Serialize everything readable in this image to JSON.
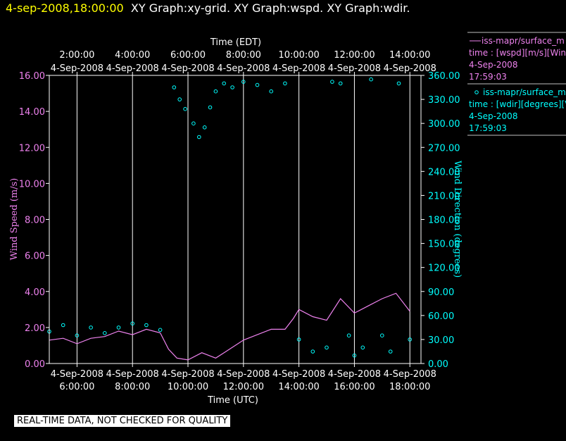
{
  "header": {
    "datetime": "4-sep-2008,18:00:00",
    "graphs": "XY Graph:xy-grid.  XY Graph:wspd.  XY Graph:wdir."
  },
  "colors": {
    "background": "#000000",
    "axis": "#ffffff",
    "grid": "#ffffff",
    "speed": "#ee82ee",
    "direction": "#00ffff",
    "date_highlight": "#ffff00"
  },
  "legend": [
    {
      "name": "iss-mapr/surface_m",
      "detail": "time : [wspd][m/s][Wind",
      "date": "4-Sep-2008",
      "time": "17:59:03",
      "color": "#ee82ee",
      "marker": "line"
    },
    {
      "name": "iss-mapr/surface_m",
      "detail": "time : [wdir][degrees][V",
      "date": "4-Sep-2008",
      "time": "17:59:03",
      "color": "#00ffff",
      "marker": "circle"
    }
  ],
  "footer_note": "REAL-TIME DATA, NOT CHECKED FOR QUALITY",
  "chart_data": {
    "type": "line",
    "top_axis_title": "Time (EDT)",
    "bottom_axis_title": "Time (UTC)",
    "y_left_label": "Wind Speed (m/s)",
    "y_right_label": "Wind Direction (degrees)",
    "x_range_utc_hours": [
      5.0,
      18.4
    ],
    "x_ticks_utc_hours": [
      6,
      8,
      10,
      12,
      14,
      16,
      18
    ],
    "x_tick_dates": [
      "4-Sep-2008",
      "4-Sep-2008",
      "4-Sep-2008",
      "4-Sep-2008",
      "4-Sep-2008",
      "4-Sep-2008",
      "4-Sep-2008"
    ],
    "x_tick_times_utc": [
      "6:00:00",
      "8:00:00",
      "10:00:00",
      "12:00:00",
      "14:00:00",
      "16:00:00",
      "18:00:00"
    ],
    "x_tick_times_edt": [
      "2:00:00",
      "4:00:00",
      "6:00:00",
      "8:00:00",
      "10:00:00",
      "12:00:00",
      "14:00:00"
    ],
    "y_left_range": [
      0,
      16
    ],
    "y_left_ticks": [
      "0.00",
      "2.00",
      "4.00",
      "6.00",
      "8.00",
      "10.00",
      "12.00",
      "14.00",
      "16.00"
    ],
    "y_right_range": [
      0,
      360
    ],
    "y_right_ticks": [
      "0.00",
      "30.00",
      "60.00",
      "90.00",
      "120.00",
      "150.00",
      "180.00",
      "210.00",
      "240.00",
      "270.00",
      "300.00",
      "330.00",
      "360.00"
    ],
    "grid_vertical": true,
    "series": [
      {
        "name": "iss-mapr/surface_m wspd",
        "style": "line",
        "axis": "left",
        "x": [
          5.0,
          5.5,
          6.0,
          6.5,
          7.0,
          7.5,
          8.0,
          8.5,
          9.0,
          9.3,
          9.6,
          10.0,
          10.5,
          11.0,
          11.3,
          11.6,
          12.0,
          12.5,
          13.0,
          13.5,
          13.8,
          14.0,
          14.5,
          15.0,
          15.5,
          16.0,
          16.5,
          17.0,
          17.5,
          18.0
        ],
        "y": [
          1.3,
          1.4,
          1.1,
          1.4,
          1.5,
          1.8,
          1.6,
          1.9,
          1.7,
          0.8,
          0.3,
          0.2,
          0.6,
          0.3,
          0.6,
          0.9,
          1.3,
          1.6,
          1.9,
          1.9,
          2.5,
          3.0,
          2.6,
          2.4,
          3.6,
          2.8,
          3.2,
          3.6,
          3.9,
          2.9
        ]
      },
      {
        "name": "iss-mapr/surface_m wdir",
        "style": "points",
        "axis": "right",
        "x": [
          5.0,
          5.5,
          6.0,
          6.5,
          7.0,
          7.5,
          8.0,
          8.5,
          9.0,
          9.5,
          9.7,
          9.9,
          10.2,
          10.4,
          10.6,
          10.8,
          11.0,
          11.3,
          11.6,
          12.0,
          12.5,
          13.0,
          13.5,
          14.0,
          14.5,
          15.0,
          15.2,
          15.5,
          15.8,
          16.0,
          16.3,
          16.6,
          17.0,
          17.3,
          17.6,
          18.0
        ],
        "y": [
          40,
          48,
          35,
          45,
          38,
          45,
          50,
          48,
          42,
          345,
          330,
          318,
          300,
          283,
          295,
          320,
          340,
          350,
          345,
          352,
          348,
          340,
          350,
          30,
          15,
          20,
          352,
          350,
          35,
          10,
          20,
          355,
          35,
          15,
          350,
          30
        ]
      }
    ]
  }
}
